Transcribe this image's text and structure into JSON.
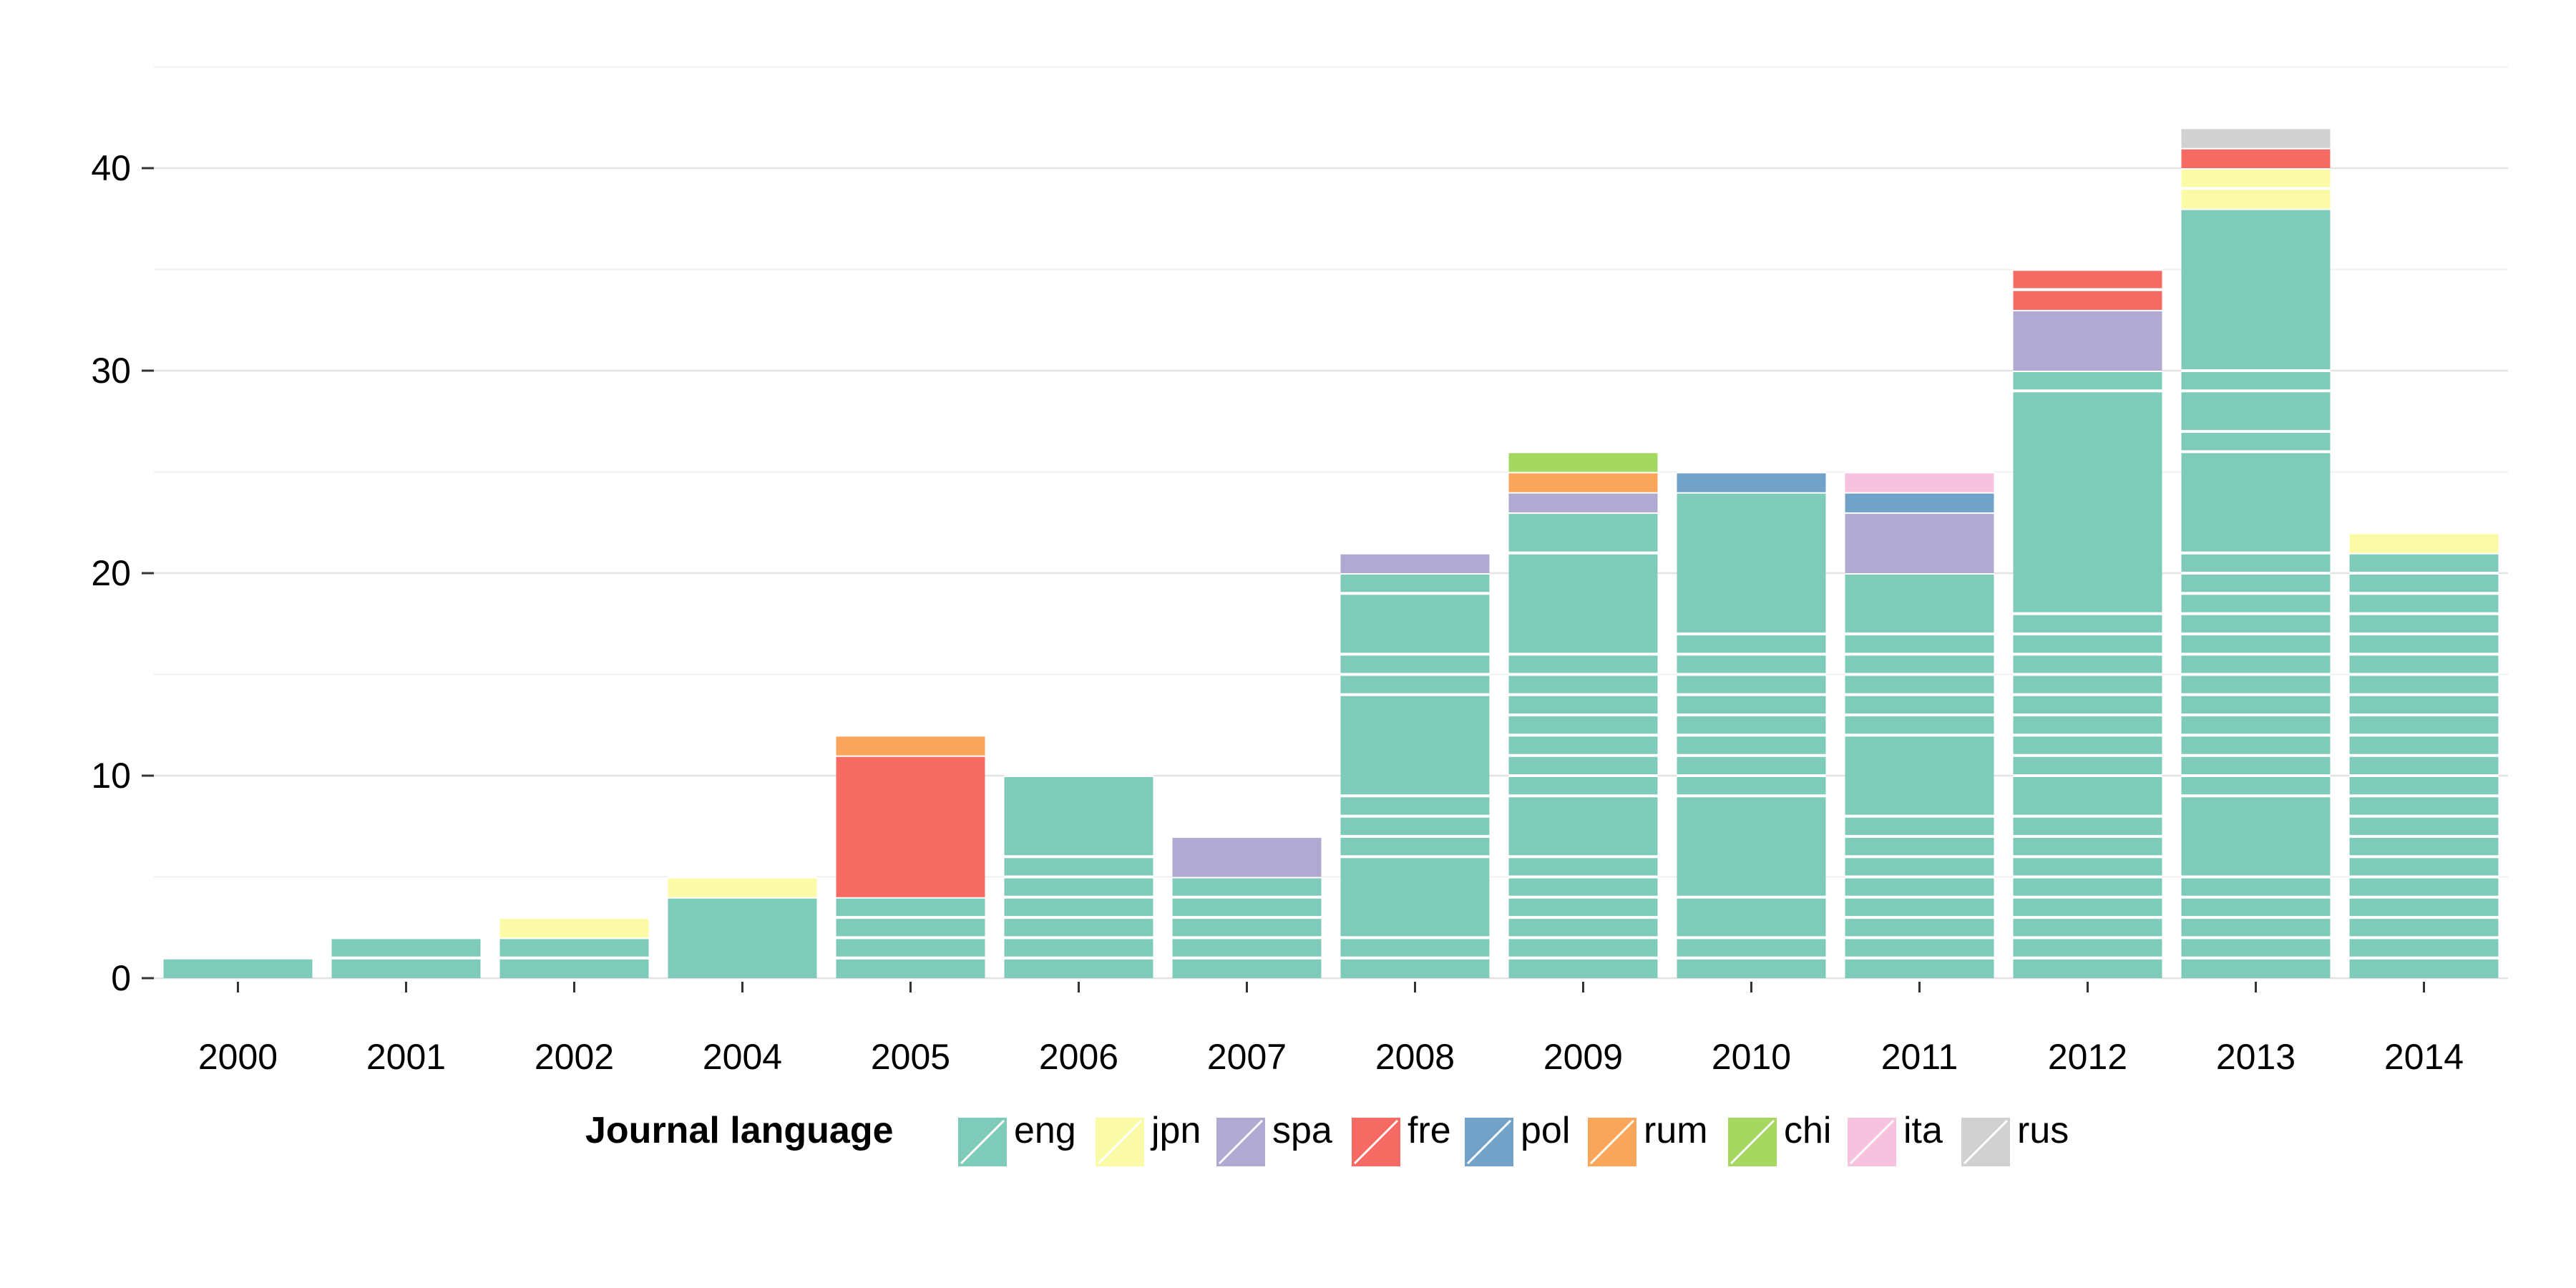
{
  "chart_data": {
    "type": "bar",
    "stacked": true,
    "categories": [
      "2000",
      "2001",
      "2002",
      "2004",
      "2005",
      "2006",
      "2007",
      "2008",
      "2009",
      "2010",
      "2011",
      "2012",
      "2013",
      "2014"
    ],
    "ylim": [
      0,
      42
    ],
    "yticks": [
      0,
      10,
      20,
      30,
      40
    ],
    "grid": true,
    "legend": {
      "title": "Journal language",
      "placement": "bottom"
    },
    "series": [
      {
        "name": "eng",
        "color": "#7fcbb9",
        "values": [
          1,
          2,
          2,
          4,
          4,
          10,
          5,
          20,
          23,
          24,
          20,
          30,
          38,
          21
        ]
      },
      {
        "name": "jpn",
        "color": "#fbfba7",
        "values": [
          0,
          0,
          1,
          1,
          0,
          0,
          0,
          0,
          0,
          0,
          0,
          0,
          2,
          1
        ]
      },
      {
        "name": "spa",
        "color": "#b0a9d1",
        "values": [
          0,
          0,
          0,
          0,
          0,
          0,
          2,
          1,
          1,
          0,
          3,
          3,
          0,
          0
        ]
      },
      {
        "name": "fre",
        "color": "#f56a62",
        "values": [
          0,
          0,
          0,
          0,
          7,
          0,
          0,
          0,
          0,
          0,
          0,
          2,
          1,
          0
        ]
      },
      {
        "name": "pol",
        "color": "#72a2c8",
        "values": [
          0,
          0,
          0,
          0,
          0,
          0,
          0,
          0,
          0,
          1,
          1,
          0,
          0,
          0
        ]
      },
      {
        "name": "rum",
        "color": "#f9a65a",
        "values": [
          0,
          0,
          0,
          0,
          1,
          0,
          0,
          0,
          1,
          0,
          0,
          0,
          0,
          0
        ]
      },
      {
        "name": "chi",
        "color": "#a4d860",
        "values": [
          0,
          0,
          0,
          0,
          0,
          0,
          0,
          0,
          1,
          0,
          0,
          0,
          0,
          0
        ]
      },
      {
        "name": "ita",
        "color": "#f6c2de",
        "values": [
          0,
          0,
          0,
          0,
          0,
          0,
          0,
          0,
          0,
          0,
          1,
          0,
          0,
          0
        ]
      },
      {
        "name": "rus",
        "color": "#d1d1d1",
        "values": [
          0,
          0,
          0,
          0,
          0,
          0,
          0,
          0,
          0,
          0,
          0,
          0,
          1,
          0
        ]
      }
    ],
    "segment_breaks": [
      [
        [
          1
        ]
      ],
      [
        [
          1,
          2
        ]
      ],
      [
        [
          1,
          2
        ],
        [
          1
        ]
      ],
      [
        [
          4
        ],
        [
          1
        ]
      ],
      [
        [
          1,
          2,
          3,
          4
        ],
        [
          7
        ],
        [
          1
        ]
      ],
      [
        [
          1,
          2,
          3,
          4,
          5,
          6,
          10
        ]
      ],
      [
        [
          1,
          2,
          3,
          4,
          5
        ],
        [
          2
        ]
      ],
      [
        [
          1,
          2,
          6,
          7,
          8,
          9,
          14,
          15,
          16,
          19,
          20
        ],
        [
          1
        ]
      ],
      [
        [
          1,
          2,
          3,
          4,
          5,
          6,
          9,
          10,
          11,
          12,
          13,
          14,
          15,
          16,
          21,
          23
        ],
        [
          1
        ],
        [
          1
        ],
        [
          1
        ]
      ],
      [
        [
          1,
          2,
          4,
          9,
          10,
          11,
          12,
          13,
          14,
          15,
          16,
          17,
          24
        ],
        [
          1
        ]
      ],
      [
        [
          1,
          2,
          3,
          4,
          5,
          6,
          7,
          8,
          12,
          13,
          14,
          15,
          16,
          17,
          20
        ],
        [
          3
        ],
        [
          1
        ],
        [
          1
        ]
      ],
      [
        [
          1,
          2,
          3,
          4,
          5,
          6,
          7,
          8,
          10,
          11,
          12,
          13,
          14,
          15,
          16,
          17,
          18,
          29,
          30
        ],
        [
          3
        ],
        [
          1,
          2
        ]
      ],
      [
        [
          1,
          2,
          3,
          4,
          5,
          9,
          10,
          11,
          12,
          13,
          14,
          15,
          16,
          17,
          18,
          19,
          20,
          21,
          26,
          27,
          29,
          30,
          38
        ],
        [
          1,
          2
        ],
        [
          1
        ],
        [
          1
        ]
      ],
      [
        [
          1,
          2,
          3,
          4,
          5,
          6,
          7,
          8,
          9,
          10,
          11,
          12,
          13,
          14,
          15,
          16,
          17,
          18,
          19,
          20,
          21
        ],
        [
          1
        ]
      ]
    ]
  }
}
